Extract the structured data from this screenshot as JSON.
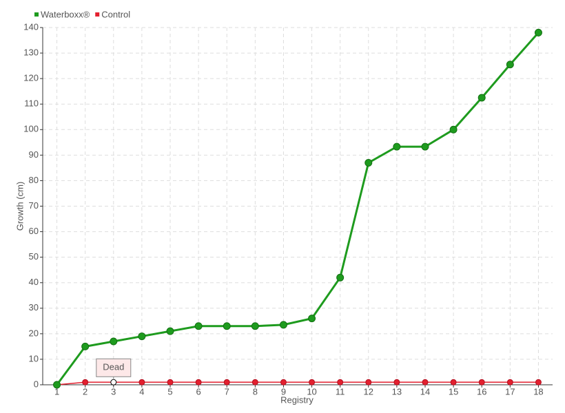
{
  "chart_data": {
    "type": "line",
    "x_label": "Registry",
    "y_label": "Growth (cm)",
    "categories": [
      "1",
      "2",
      "3",
      "4",
      "5",
      "6",
      "7",
      "8",
      "9",
      "10",
      "11",
      "12",
      "13",
      "14",
      "15",
      "16",
      "17",
      "18"
    ],
    "series": [
      {
        "name": "Waterboxx®",
        "color": "#1e9b1e",
        "values": [
          0,
          15,
          17,
          19,
          21,
          23,
          23,
          23,
          23.5,
          26,
          42,
          87,
          93.3,
          93.3,
          100,
          112.5,
          125.5,
          138
        ]
      },
      {
        "name": "Control",
        "color": "#e3202f",
        "values": [
          0,
          1,
          1,
          1,
          1,
          1,
          1,
          1,
          1,
          1,
          1,
          1,
          1,
          1,
          1,
          1,
          1,
          1
        ]
      }
    ],
    "ylim": [
      0,
      140
    ],
    "yticks": [
      0,
      10,
      20,
      30,
      40,
      50,
      60,
      70,
      80,
      90,
      100,
      110,
      120,
      130,
      140
    ],
    "grid": true,
    "legend": "top-left",
    "annotations": [
      {
        "text": "Dead",
        "x": "3"
      }
    ]
  }
}
